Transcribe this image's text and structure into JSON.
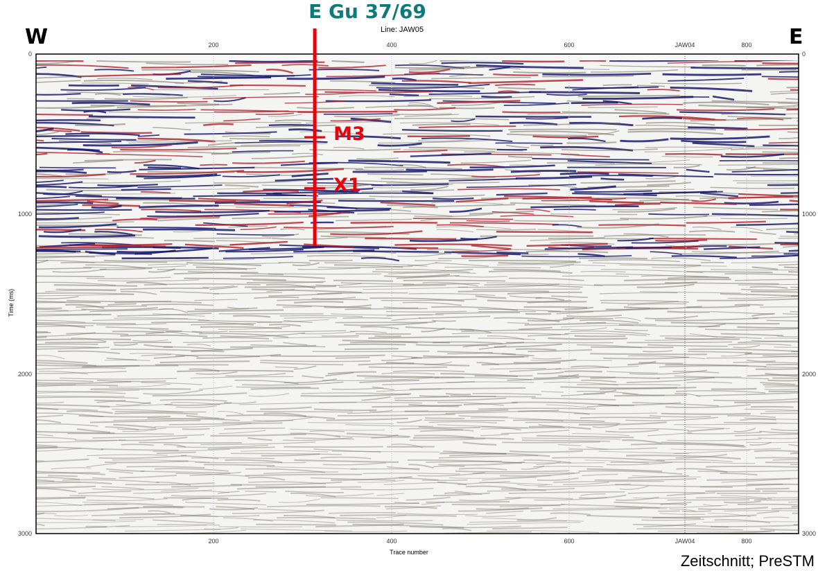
{
  "well": {
    "name": "E Gu 37/69",
    "color": "#e8000b",
    "trace": 315,
    "top_ms": -160,
    "bottom_ms": 1200
  },
  "line": {
    "label": "Line: JAW05"
  },
  "sides": {
    "west": "W",
    "east": "E"
  },
  "axes": {
    "x_label": "Trace number",
    "y_label": "Time   (ms)",
    "x_range": [
      1,
      860
    ],
    "y_range": [
      0,
      3000
    ],
    "x_ticks": [
      "200",
      "400",
      "600",
      "800"
    ],
    "y_ticks": [
      "0",
      "1000",
      "2000",
      "3000"
    ],
    "crossing": {
      "label": "JAW04",
      "trace": 730
    }
  },
  "horizons": [
    {
      "name": "M3",
      "time_ms": 520
    },
    {
      "name": "X1",
      "time_ms": 840
    }
  ],
  "caption": "Zeitschnitt; PreSTM",
  "colors": {
    "title": "#0f7a7a",
    "marker": "#e8000b",
    "positive": "#1a1a6e",
    "negative": "#b0202a"
  }
}
